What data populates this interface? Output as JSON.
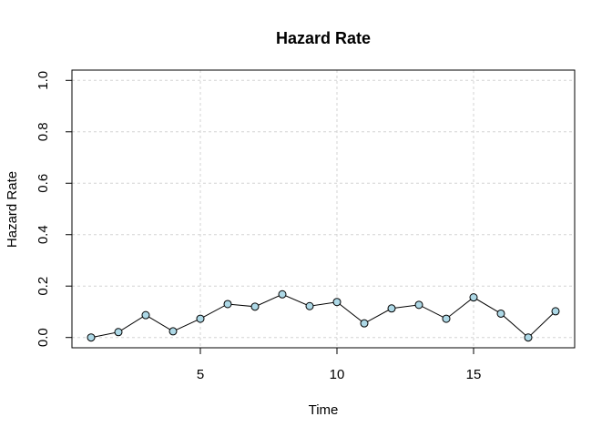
{
  "chart_data": {
    "type": "line",
    "title": "Hazard Rate",
    "xlabel": "Time",
    "ylabel": "Hazard Rate",
    "xlim": [
      0.3,
      18.7
    ],
    "ylim": [
      -0.04,
      1.04
    ],
    "x_ticks": [
      5,
      10,
      15
    ],
    "x_tick_labels": [
      "5",
      "10",
      "15"
    ],
    "y_ticks": [
      0.0,
      0.2,
      0.4,
      0.6,
      0.8,
      1.0
    ],
    "y_tick_labels": [
      "0.0",
      "0.2",
      "0.4",
      "0.6",
      "0.8",
      "1.0"
    ],
    "grid": true,
    "series": [
      {
        "x": [
          1,
          2,
          3,
          4,
          5,
          6,
          7,
          8,
          9,
          10,
          11,
          12,
          13,
          14,
          15,
          16,
          17,
          18
        ],
        "values": [
          0.0,
          0.021,
          0.087,
          0.024,
          0.073,
          0.13,
          0.12,
          0.168,
          0.122,
          0.138,
          0.055,
          0.113,
          0.127,
          0.073,
          0.156,
          0.093,
          0.0,
          0.102
        ]
      }
    ],
    "colors": {
      "line": "#000000",
      "marker_fill": "#add8e6",
      "marker_stroke": "#000000",
      "grid": "#d3d3d3"
    }
  }
}
